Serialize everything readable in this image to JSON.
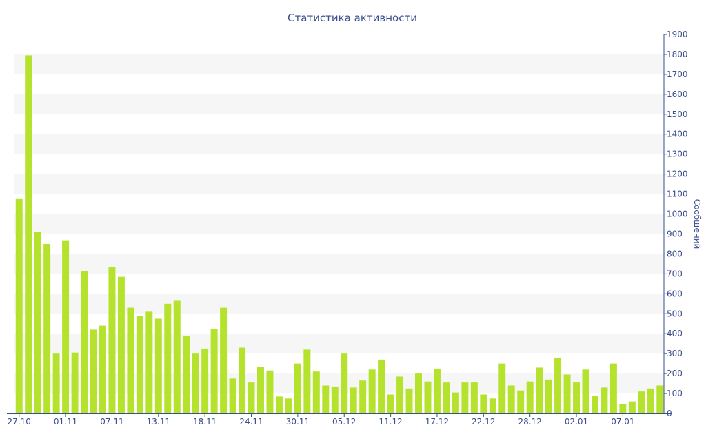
{
  "chart_data": {
    "type": "bar",
    "title": "Статистика активности",
    "ylabel": "Сообщений",
    "xlabel": "",
    "ylim": [
      0,
      1900
    ],
    "ytick_values": [
      0,
      100,
      200,
      300,
      400,
      500,
      600,
      700,
      800,
      900,
      1000,
      1100,
      1200,
      1300,
      1400,
      1500,
      1600,
      1700,
      1800,
      1900
    ],
    "x_tick_labels": [
      {
        "index": 0,
        "label": "27.10"
      },
      {
        "index": 5,
        "label": "01.11"
      },
      {
        "index": 10,
        "label": "07.11"
      },
      {
        "index": 15,
        "label": "13.11"
      },
      {
        "index": 20,
        "label": "18.11"
      },
      {
        "index": 25,
        "label": "24.11"
      },
      {
        "index": 30,
        "label": "30.11"
      },
      {
        "index": 35,
        "label": "05.12"
      },
      {
        "index": 40,
        "label": "11.12"
      },
      {
        "index": 45,
        "label": "17.12"
      },
      {
        "index": 50,
        "label": "22.12"
      },
      {
        "index": 55,
        "label": "28.12"
      },
      {
        "index": 60,
        "label": "02.01"
      },
      {
        "index": 65,
        "label": "07.01"
      }
    ],
    "values": [
      1075,
      1795,
      910,
      850,
      300,
      865,
      305,
      715,
      420,
      440,
      735,
      685,
      530,
      490,
      510,
      475,
      550,
      565,
      390,
      300,
      325,
      425,
      530,
      175,
      330,
      155,
      235,
      215,
      85,
      75,
      250,
      320,
      210,
      140,
      135,
      300,
      130,
      165,
      220,
      270,
      95,
      185,
      125,
      200,
      160,
      225,
      155,
      105,
      155,
      155,
      95,
      75,
      250,
      140,
      115,
      160,
      230,
      170,
      280,
      195,
      155,
      220,
      90,
      130,
      250,
      45,
      60,
      110,
      125,
      140
    ],
    "bar_color": "#b5e22c",
    "band_color": "#f6f6f6",
    "axis_color": "#3a4d8f",
    "grid": true,
    "y_axis_side": "right"
  }
}
